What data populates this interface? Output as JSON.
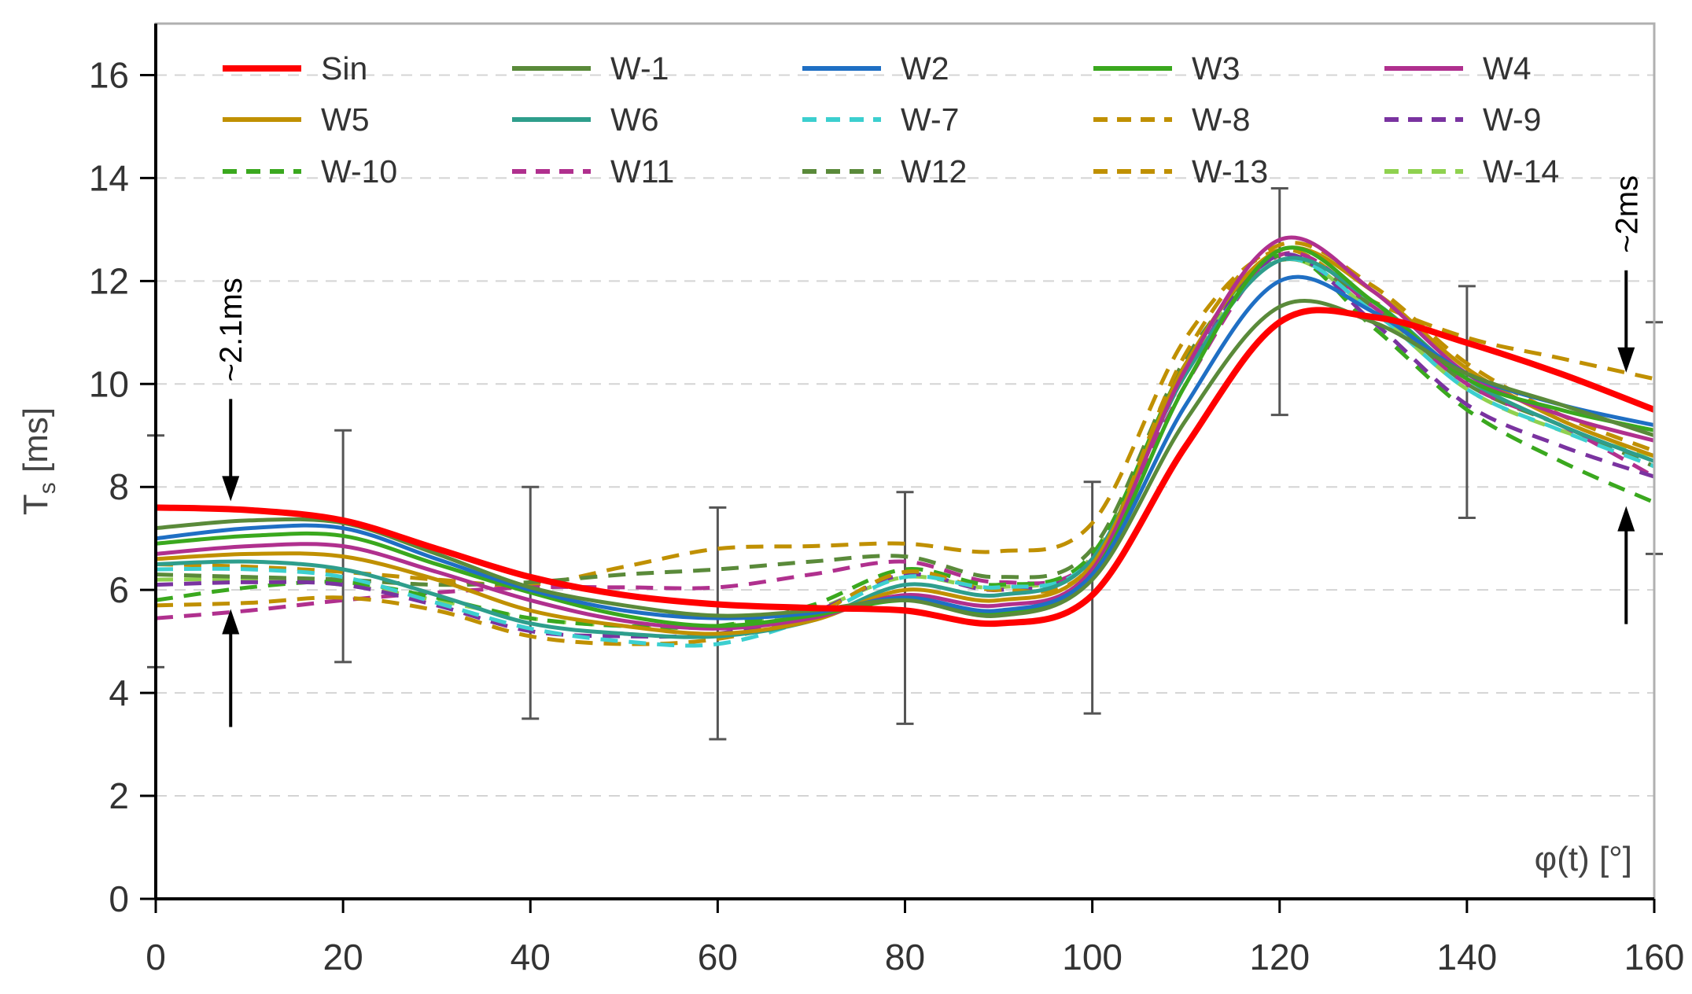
{
  "chart_data": {
    "type": "line",
    "title": "",
    "xlabel": "φ(t) [°]",
    "ylabel_main": "T",
    "ylabel_sub": "s",
    "ylabel_unit": " [ms]",
    "xlim": [
      0,
      160
    ],
    "ylim": [
      0,
      17
    ],
    "xticks": [
      0,
      20,
      40,
      60,
      80,
      100,
      120,
      140,
      160
    ],
    "yticks": [
      0,
      2,
      4,
      6,
      8,
      10,
      12,
      14,
      16
    ],
    "grid": true,
    "legend_position": "top",
    "series": [
      {
        "name": "Sin",
        "color": "#ff0000",
        "dash": "solid",
        "bold": true,
        "x": [
          0,
          10,
          20,
          30,
          40,
          50,
          60,
          70,
          80,
          90,
          100,
          110,
          120,
          130,
          140,
          150,
          160
        ],
        "y": [
          7.6,
          7.55,
          7.35,
          6.8,
          6.25,
          5.9,
          5.72,
          5.65,
          5.6,
          5.35,
          5.9,
          8.8,
          11.2,
          11.3,
          10.8,
          10.2,
          9.5
        ]
      },
      {
        "name": "W-1",
        "color": "#5a8a3a",
        "dash": "solid",
        "x": [
          0,
          10,
          20,
          30,
          40,
          50,
          60,
          70,
          80,
          90,
          100,
          110,
          120,
          130,
          140,
          150,
          160
        ],
        "y": [
          7.2,
          7.35,
          7.3,
          6.7,
          6.05,
          5.7,
          5.5,
          5.6,
          5.8,
          5.5,
          6.2,
          9.3,
          11.5,
          11.2,
          10.2,
          9.6,
          9.0
        ]
      },
      {
        "name": "W2",
        "color": "#1f6fc4",
        "dash": "solid",
        "x": [
          0,
          10,
          20,
          30,
          40,
          50,
          60,
          70,
          80,
          90,
          100,
          110,
          120,
          130,
          140,
          150,
          160
        ],
        "y": [
          7.0,
          7.2,
          7.2,
          6.6,
          6.0,
          5.6,
          5.45,
          5.55,
          5.85,
          5.6,
          6.3,
          9.6,
          12.0,
          11.4,
          10.2,
          9.6,
          9.2
        ]
      },
      {
        "name": "W3",
        "color": "#3aa81e",
        "dash": "solid",
        "x": [
          0,
          10,
          20,
          30,
          40,
          50,
          60,
          70,
          80,
          90,
          100,
          110,
          120,
          130,
          140,
          150,
          160
        ],
        "y": [
          6.9,
          7.05,
          7.05,
          6.5,
          5.95,
          5.5,
          5.3,
          5.5,
          5.8,
          5.55,
          6.3,
          10.0,
          12.6,
          11.6,
          10.1,
          9.5,
          9.1
        ]
      },
      {
        "name": "W4",
        "color": "#b0308e",
        "dash": "solid",
        "x": [
          0,
          10,
          20,
          30,
          40,
          50,
          60,
          70,
          80,
          90,
          100,
          110,
          120,
          130,
          140,
          150,
          160
        ],
        "y": [
          6.7,
          6.85,
          6.85,
          6.35,
          5.8,
          5.4,
          5.25,
          5.45,
          5.9,
          5.7,
          6.4,
          10.3,
          12.8,
          11.8,
          10.2,
          9.4,
          8.9
        ]
      },
      {
        "name": "W5",
        "color": "#c09000",
        "dash": "solid",
        "x": [
          0,
          10,
          20,
          30,
          40,
          50,
          60,
          70,
          80,
          90,
          100,
          110,
          120,
          130,
          140,
          150,
          160
        ],
        "y": [
          6.6,
          6.7,
          6.65,
          6.2,
          5.6,
          5.3,
          5.15,
          5.4,
          6.0,
          5.8,
          6.5,
          10.4,
          12.6,
          11.8,
          10.3,
          9.3,
          8.6
        ]
      },
      {
        "name": "W6",
        "color": "#2e9e8c",
        "dash": "solid",
        "x": [
          0,
          10,
          20,
          30,
          40,
          50,
          60,
          70,
          80,
          90,
          100,
          110,
          120,
          130,
          140,
          150,
          160
        ],
        "y": [
          6.5,
          6.55,
          6.4,
          5.9,
          5.35,
          5.15,
          5.1,
          5.4,
          6.1,
          5.9,
          6.6,
          10.2,
          12.4,
          11.6,
          10.1,
          9.2,
          8.5
        ]
      },
      {
        "name": "W-7",
        "color": "#3ccfcf",
        "dash": "dashed",
        "x": [
          0,
          10,
          20,
          30,
          40,
          50,
          60,
          70,
          80,
          90,
          100,
          110,
          120,
          130,
          140,
          150,
          160
        ],
        "y": [
          6.4,
          6.4,
          6.25,
          5.75,
          5.25,
          5.0,
          4.95,
          5.45,
          6.25,
          6.05,
          6.6,
          10.2,
          12.4,
          11.4,
          9.9,
          9.1,
          8.4
        ]
      },
      {
        "name": "W-8",
        "color": "#c09000",
        "dash": "dashed",
        "x": [
          0,
          10,
          20,
          30,
          40,
          50,
          60,
          70,
          80,
          90,
          100,
          110,
          120,
          130,
          140,
          150,
          160
        ],
        "y": [
          5.7,
          5.75,
          5.85,
          5.6,
          5.1,
          4.95,
          5.05,
          5.5,
          6.35,
          6.0,
          6.5,
          10.6,
          12.7,
          11.9,
          10.4,
          9.4,
          8.7
        ]
      },
      {
        "name": "W-9",
        "color": "#7a33a0",
        "dash": "dashed",
        "x": [
          0,
          10,
          20,
          30,
          40,
          50,
          60,
          70,
          80,
          90,
          100,
          110,
          120,
          130,
          140,
          150,
          160
        ],
        "y": [
          6.1,
          6.15,
          6.1,
          5.7,
          5.2,
          5.1,
          5.15,
          5.55,
          6.3,
          6.0,
          6.6,
          10.2,
          12.5,
          11.2,
          9.6,
          8.8,
          8.2
        ]
      },
      {
        "name": "W-10",
        "color": "#3aa81e",
        "dash": "dashed",
        "x": [
          0,
          10,
          20,
          30,
          40,
          50,
          60,
          70,
          80,
          90,
          100,
          110,
          120,
          130,
          140,
          150,
          160
        ],
        "y": [
          5.8,
          6.05,
          6.15,
          5.85,
          5.45,
          5.3,
          5.3,
          5.7,
          6.4,
          6.1,
          6.7,
          10.4,
          12.5,
          11.1,
          9.5,
          8.5,
          7.7
        ]
      },
      {
        "name": "W11",
        "color": "#b0308e",
        "dash": "dashed",
        "x": [
          0,
          10,
          20,
          30,
          40,
          50,
          60,
          70,
          80,
          90,
          100,
          110,
          120,
          130,
          140,
          150,
          160
        ],
        "y": [
          5.45,
          5.6,
          5.8,
          5.95,
          6.05,
          6.05,
          6.05,
          6.3,
          6.55,
          6.15,
          6.6,
          10.0,
          12.5,
          11.5,
          10.0,
          9.2,
          8.2
        ]
      },
      {
        "name": "W12",
        "color": "#5a8a3a",
        "dash": "dashed",
        "x": [
          0,
          10,
          20,
          30,
          40,
          50,
          60,
          70,
          80,
          90,
          100,
          110,
          120,
          130,
          140,
          150,
          160
        ],
        "y": [
          6.3,
          6.25,
          6.2,
          6.1,
          6.15,
          6.3,
          6.4,
          6.55,
          6.65,
          6.25,
          6.8,
          10.5,
          12.4,
          11.5,
          10.0,
          9.2,
          8.4
        ]
      },
      {
        "name": "W-13",
        "color": "#c09000",
        "dash": "dashed",
        "x": [
          0,
          10,
          20,
          30,
          40,
          50,
          60,
          70,
          80,
          90,
          100,
          110,
          120,
          130,
          140,
          150,
          160
        ],
        "y": [
          6.5,
          6.45,
          6.35,
          6.2,
          6.1,
          6.45,
          6.8,
          6.85,
          6.9,
          6.75,
          7.3,
          10.9,
          12.6,
          11.6,
          10.9,
          10.5,
          10.1
        ]
      },
      {
        "name": "W-14",
        "color": "#8fd14f",
        "dash": "dashed",
        "x": [
          0,
          10,
          20,
          30,
          40,
          50,
          60,
          70,
          80,
          90,
          100,
          110,
          120,
          130,
          140,
          150,
          160
        ],
        "y": [
          6.2,
          6.2,
          6.1,
          5.8,
          5.45,
          5.3,
          5.3,
          5.6,
          6.25,
          6.05,
          6.65,
          10.3,
          12.4,
          11.4,
          9.9,
          9.1,
          8.6
        ]
      }
    ],
    "error_bars": [
      {
        "x": 0,
        "y": 6.75,
        "low": 4.5,
        "high": 9.0
      },
      {
        "x": 20,
        "y": 6.85,
        "low": 4.6,
        "high": 9.1
      },
      {
        "x": 40,
        "y": 5.75,
        "low": 3.5,
        "high": 8.0
      },
      {
        "x": 60,
        "y": 5.35,
        "low": 3.1,
        "high": 7.6
      },
      {
        "x": 80,
        "y": 5.65,
        "low": 3.4,
        "high": 7.9
      },
      {
        "x": 100,
        "y": 5.85,
        "low": 3.6,
        "high": 8.1
      },
      {
        "x": 120,
        "y": 11.6,
        "low": 9.4,
        "high": 13.8
      },
      {
        "x": 140,
        "y": 9.65,
        "low": 7.4,
        "high": 11.9
      },
      {
        "x": 160,
        "y": 8.95,
        "low": 6.7,
        "high": 11.2
      }
    ],
    "annotations": [
      {
        "text": "~2.1ms",
        "x": 8,
        "y_top": 7.6,
        "y_bottom": 5.75
      },
      {
        "text": "~2ms",
        "x": 157,
        "y_top": 10.1,
        "y_bottom": 7.75
      }
    ]
  }
}
